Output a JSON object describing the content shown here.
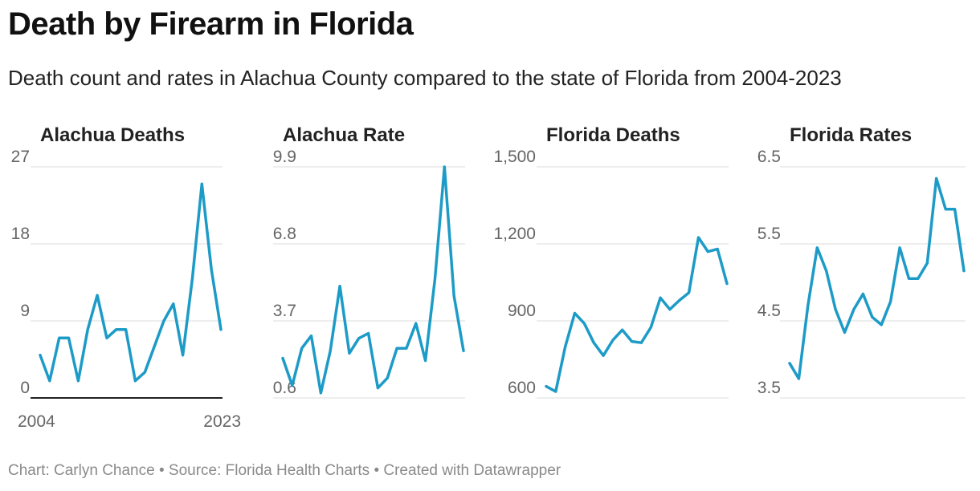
{
  "header": {
    "title": "Death by Firearm in Florida",
    "subtitle": "Death count and rates in Alachua County compared to the state of Florida from 2004-2023"
  },
  "footer": {
    "credit": "Chart: Carlyn Chance • Source: Florida Health Charts • Created with Datawrapper"
  },
  "colors": {
    "line": "#1d9bc7",
    "grid": "#dddddd",
    "baseline": "#222222",
    "tick": "#666666"
  },
  "chart_data": [
    {
      "type": "line",
      "title": "Alachua Deaths",
      "x": [
        2004,
        2005,
        2006,
        2007,
        2008,
        2009,
        2010,
        2011,
        2012,
        2013,
        2014,
        2015,
        2016,
        2017,
        2018,
        2019,
        2020,
        2021,
        2022,
        2023
      ],
      "values": [
        5,
        2,
        7,
        7,
        2,
        8,
        12,
        7,
        8,
        8,
        2,
        3,
        6,
        9,
        11,
        5,
        14,
        25,
        15,
        8
      ],
      "yticks": [
        "0",
        "9",
        "18",
        "27"
      ],
      "ylim": [
        0,
        27
      ],
      "xticks": [
        "2004",
        "2023"
      ],
      "zero_baseline": true
    },
    {
      "type": "line",
      "title": "Alachua Rate",
      "x": [
        2004,
        2005,
        2006,
        2007,
        2008,
        2009,
        2010,
        2011,
        2012,
        2013,
        2014,
        2015,
        2016,
        2017,
        2018,
        2019,
        2020,
        2021,
        2022,
        2023
      ],
      "values": [
        2.2,
        1.1,
        2.6,
        3.1,
        0.8,
        2.5,
        5.1,
        2.4,
        3.0,
        3.2,
        1.0,
        1.4,
        2.6,
        2.6,
        3.6,
        2.1,
        5.4,
        9.9,
        4.7,
        2.5
      ],
      "yticks": [
        "0.6",
        "3.7",
        "6.8",
        "9.9"
      ],
      "ylim": [
        0.6,
        9.9
      ],
      "xticks": [],
      "zero_baseline": false
    },
    {
      "type": "line",
      "title": "Florida Deaths",
      "x": [
        2004,
        2005,
        2006,
        2007,
        2008,
        2009,
        2010,
        2011,
        2012,
        2013,
        2014,
        2015,
        2016,
        2017,
        2018,
        2019,
        2020,
        2021,
        2022,
        2023
      ],
      "values": [
        645,
        625,
        800,
        930,
        890,
        815,
        765,
        825,
        865,
        820,
        815,
        875,
        990,
        945,
        980,
        1010,
        1225,
        1170,
        1180,
        1045
      ],
      "yticks": [
        "600",
        "900",
        "1,200",
        "1,500"
      ],
      "ylim": [
        600,
        1500
      ],
      "xticks": [],
      "zero_baseline": false
    },
    {
      "type": "line",
      "title": "Florida Rates",
      "x": [
        2004,
        2005,
        2006,
        2007,
        2008,
        2009,
        2010,
        2011,
        2012,
        2013,
        2014,
        2015,
        2016,
        2017,
        2018,
        2019,
        2020,
        2021,
        2022,
        2023
      ],
      "values": [
        3.95,
        3.75,
        4.7,
        5.45,
        5.15,
        4.65,
        4.35,
        4.65,
        4.85,
        4.55,
        4.45,
        4.75,
        5.45,
        5.05,
        5.05,
        5.25,
        6.35,
        5.95,
        5.95,
        5.15
      ],
      "yticks": [
        "3.5",
        "4.5",
        "5.5",
        "6.5"
      ],
      "ylim": [
        3.5,
        6.5
      ],
      "xticks": [],
      "zero_baseline": false
    }
  ]
}
